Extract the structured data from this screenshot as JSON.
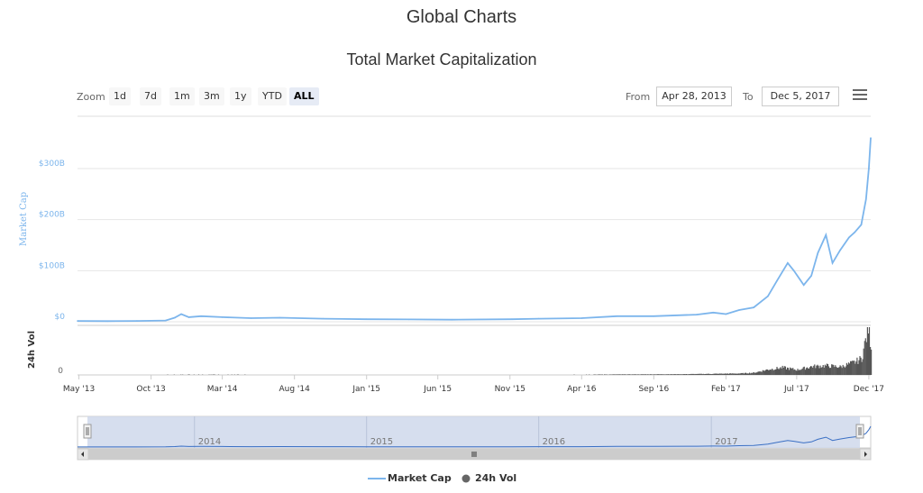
{
  "page": {
    "title": "Global Charts"
  },
  "chart_title": "Total Market Capitalization",
  "toolbar": {
    "zoom_label": "Zoom",
    "zoom_buttons": [
      "1d",
      "7d",
      "1m",
      "3m",
      "1y",
      "YTD",
      "ALL"
    ],
    "active_zoom": "ALL",
    "from_label": "From",
    "from_value": "Apr 28, 2013",
    "to_label": "To",
    "to_value": "Dec 5, 2017",
    "menu_icon": "hamburger-menu-icon"
  },
  "legend": {
    "market_cap_label": "Market Cap",
    "volume_label": "24h Vol"
  },
  "colors": {
    "market_cap": "#7cb5ec",
    "volume": "#434348",
    "navigator_fill": "#cfd8eb",
    "navigator_line": "#3a6fc4",
    "grid": "#e6e6e6"
  },
  "chart_data": {
    "type": "line",
    "title": "Total Market Capitalization",
    "x_range": [
      "2013-04-28",
      "2017-12-05"
    ],
    "x_tick_labels": [
      "May '13",
      "Oct '13",
      "Mar '14",
      "Aug '14",
      "Jan '15",
      "Jun '15",
      "Nov '15",
      "Apr '16",
      "Sep '16",
      "Feb '17",
      "Jul '17",
      "Dec '17"
    ],
    "x_tick_dates": [
      "2013-05-01",
      "2013-10-01",
      "2014-03-01",
      "2014-08-01",
      "2015-01-01",
      "2015-06-01",
      "2015-11-01",
      "2016-04-01",
      "2016-09-01",
      "2017-02-01",
      "2017-07-01",
      "2017-12-01"
    ],
    "panes": [
      {
        "ylabel": "Market Cap",
        "ylim": [
          0,
          300
        ],
        "y_unit": "B USD",
        "y_tick_values": [
          0,
          100,
          200,
          300
        ],
        "y_tick_labels": [
          "$0",
          "$100B",
          "$200B",
          "$300B"
        ],
        "grid": true
      },
      {
        "ylabel": "24h Vol",
        "y_tick_values": [
          0
        ],
        "y_tick_labels": [
          "0"
        ],
        "grid": false
      }
    ],
    "series": [
      {
        "name": "Market Cap",
        "type": "line",
        "unit": "billion USD",
        "x": [
          "2013-04-28",
          "2013-07-01",
          "2013-09-01",
          "2013-11-01",
          "2013-11-20",
          "2013-12-04",
          "2013-12-20",
          "2014-01-15",
          "2014-03-01",
          "2014-05-01",
          "2014-07-01",
          "2014-10-01",
          "2015-01-01",
          "2015-04-01",
          "2015-07-01",
          "2015-11-05",
          "2016-01-01",
          "2016-04-01",
          "2016-06-15",
          "2016-09-01",
          "2016-12-01",
          "2017-01-05",
          "2017-02-01",
          "2017-03-01",
          "2017-04-01",
          "2017-05-01",
          "2017-05-20",
          "2017-06-12",
          "2017-06-25",
          "2017-07-16",
          "2017-08-01",
          "2017-08-15",
          "2017-09-01",
          "2017-09-15",
          "2017-10-01",
          "2017-10-20",
          "2017-11-01",
          "2017-11-15",
          "2017-11-25",
          "2017-12-01",
          "2017-12-05"
        ],
        "y": [
          1.5,
          1.2,
          1.5,
          2.5,
          8,
          15,
          9,
          11,
          9,
          7,
          8,
          6,
          5,
          4.5,
          4,
          5,
          6,
          7,
          11,
          11,
          14,
          18,
          15,
          23,
          28,
          50,
          80,
          115,
          100,
          72,
          90,
          135,
          170,
          115,
          140,
          165,
          175,
          190,
          240,
          300,
          360
        ]
      },
      {
        "name": "24h Vol",
        "type": "column",
        "unit": "billion USD",
        "x": [
          "2013-04-28",
          "2014-01-01",
          "2015-01-01",
          "2016-01-01",
          "2016-11-01",
          "2017-01-01",
          "2017-03-01",
          "2017-04-01",
          "2017-05-01",
          "2017-06-01",
          "2017-07-01",
          "2017-08-01",
          "2017-09-01",
          "2017-10-01",
          "2017-11-01",
          "2017-11-15",
          "2017-11-29",
          "2017-12-05"
        ],
        "y": [
          0.02,
          0.1,
          0.03,
          0.05,
          0.2,
          0.3,
          0.4,
          0.6,
          1.5,
          2,
          1.4,
          2.3,
          2.5,
          2.2,
          3.5,
          4.5,
          13,
          8
        ]
      }
    ]
  },
  "navigator": {
    "year_labels": [
      "2014",
      "2015",
      "2016",
      "2017"
    ],
    "year_dates": [
      "2014-01-01",
      "2015-01-01",
      "2016-01-01",
      "2017-01-01"
    ],
    "selected_range": [
      "2013-04-28",
      "2017-12-05"
    ]
  }
}
